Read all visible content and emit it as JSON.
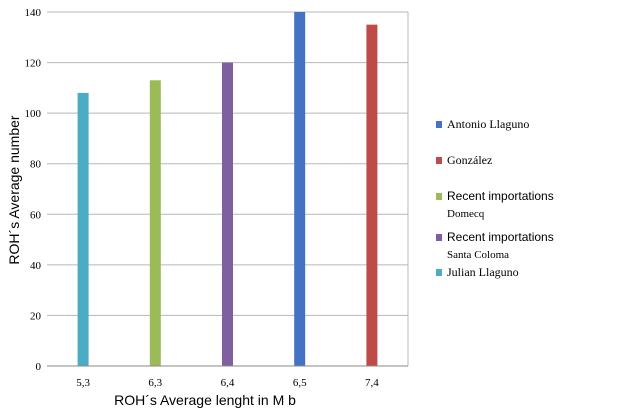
{
  "chart_data": {
    "type": "bar",
    "xlabel": "ROH´s Average lenght in M b",
    "ylabel": "ROH´s Average number",
    "ylim": [
      0,
      140
    ],
    "yticks": [
      0,
      20,
      40,
      60,
      80,
      100,
      120,
      140
    ],
    "categories": [
      "5,3",
      "6,3",
      "6,4",
      "6,5",
      "7,4"
    ],
    "grid": true,
    "legend_position": "right",
    "series": [
      {
        "name": "Antonio Llaguno",
        "name_line2": "",
        "color": "#4472C4",
        "values": [
          null,
          null,
          null,
          140,
          null
        ],
        "legend_font": "serif"
      },
      {
        "name": "González",
        "name_line2": "",
        "color": "#BE4B48",
        "values": [
          null,
          null,
          null,
          null,
          135
        ],
        "legend_font": "serif"
      },
      {
        "name": " Recent importations",
        "name_line2": "Domecq",
        "color": "#9BBB59",
        "values": [
          null,
          113,
          null,
          null,
          null
        ],
        "legend_font": "sans"
      },
      {
        "name": " Recent importations",
        "name_line2": "Santa Coloma",
        "color": "#7F5FA0",
        "values": [
          null,
          null,
          120,
          null,
          null
        ],
        "legend_font": "sans"
      },
      {
        "name": "Julian Llaguno",
        "name_line2": "",
        "color": "#4BACC6",
        "values": [
          108,
          null,
          null,
          null,
          null
        ],
        "legend_font": "serif"
      }
    ]
  }
}
